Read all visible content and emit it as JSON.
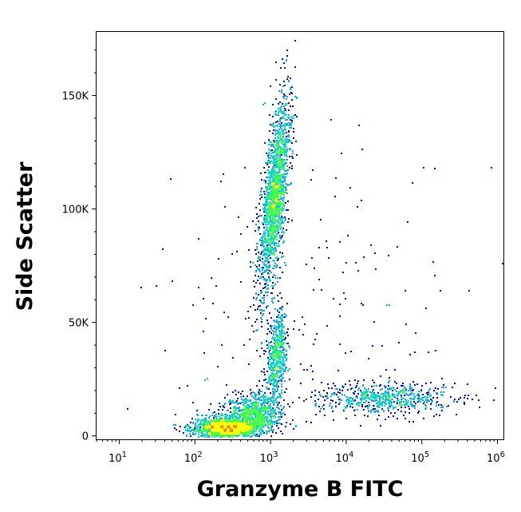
{
  "chart_data": {
    "type": "scatter",
    "style": "density-dot-plot",
    "title": "",
    "xlabel": "Granzyme B FITC",
    "ylabel": "Side Scatter",
    "x_scale": "log",
    "xlim": [
      5,
      1200000
    ],
    "ylim": [
      -1500,
      178000
    ],
    "x_ticks": [
      {
        "value": 10,
        "base": "10",
        "exp": "1"
      },
      {
        "value": 100,
        "base": "10",
        "exp": "2"
      },
      {
        "value": 1000,
        "base": "10",
        "exp": "3"
      },
      {
        "value": 10000,
        "base": "10",
        "exp": "4"
      },
      {
        "value": 100000,
        "base": "10",
        "exp": "5"
      },
      {
        "value": 1000000,
        "base": "10",
        "exp": "6"
      }
    ],
    "y_ticks": [
      {
        "value": 0,
        "label": "0"
      },
      {
        "value": 50000,
        "label": "50K"
      },
      {
        "value": 100000,
        "label": "100K"
      },
      {
        "value": 150000,
        "label": "150K"
      }
    ],
    "grid": false,
    "density_colors": [
      "#0000ff",
      "#00aaff",
      "#00e0c0",
      "#40ff40",
      "#ffff00",
      "#ff8000",
      "#ff0000"
    ],
    "populations": [
      {
        "center_x": 1100,
        "center_y": 105000,
        "spread_log_x": 0.08,
        "spread_y": 22000,
        "tilt": 0.55,
        "weight": 0.32
      },
      {
        "center_x": 1200,
        "center_y": 35000,
        "spread_log_x": 0.07,
        "spread_y": 10000,
        "tilt": 0.2,
        "weight": 0.1
      },
      {
        "center_x": 250,
        "center_y": 3500,
        "spread_log_x": 0.22,
        "spread_y": 2500,
        "tilt": 0.0,
        "weight": 0.28
      },
      {
        "center_x": 600,
        "center_y": 10000,
        "spread_log_x": 0.18,
        "spread_y": 4500,
        "tilt": 0.0,
        "weight": 0.14
      },
      {
        "center_x": 30000,
        "center_y": 17000,
        "spread_log_x": 0.45,
        "spread_y": 3500,
        "tilt": 0.0,
        "weight": 0.12
      },
      {
        "center_x": 3000,
        "center_y": 60000,
        "spread_log_x": 1.0,
        "spread_y": 40000,
        "tilt": 0.0,
        "weight": 0.04
      }
    ]
  }
}
